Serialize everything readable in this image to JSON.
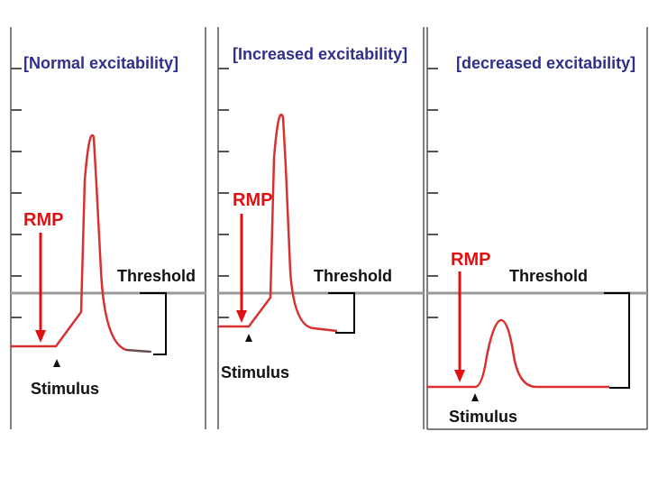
{
  "colors": {
    "title": "#30308a",
    "trace": "#d83030",
    "rmp": "#e01010",
    "threshold_line": "#9a9a9a",
    "axis": "#555555",
    "text": "#111111",
    "bracket": "#000000"
  },
  "panels": [
    {
      "title": "[Normal excitability]",
      "rmp_label": "RMP",
      "threshold_label": "Threshold",
      "stimulus_label": "Stimulus"
    },
    {
      "title": "[Increased excitability]",
      "rmp_label": "RMP",
      "threshold_label": "Threshold",
      "stimulus_label": "Stimulus"
    },
    {
      "title": "[decreased excitability]",
      "rmp_label": "RMP",
      "threshold_label": "Threshold",
      "stimulus_label": "Stimulus"
    }
  ]
}
